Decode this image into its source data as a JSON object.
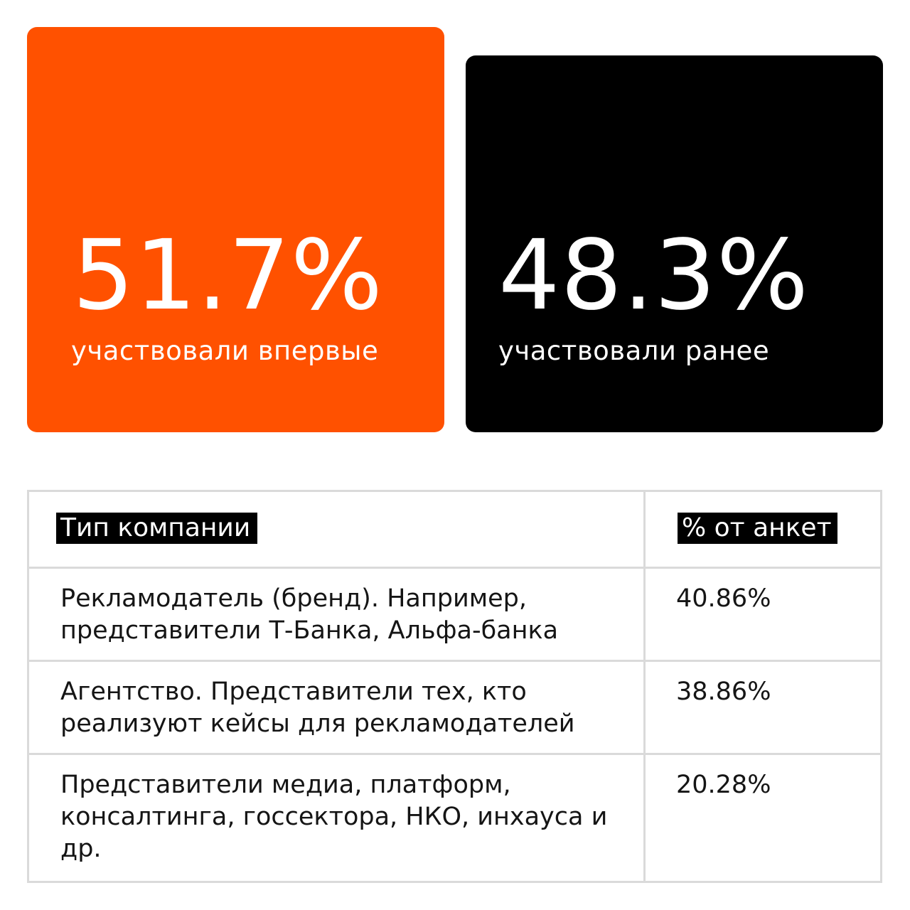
{
  "stats": {
    "first_time": {
      "value": "51.7%",
      "label": "участвовали впервые",
      "color": "#ff5100"
    },
    "previously": {
      "value": "48.3%",
      "label": "участвовали ранее",
      "color": "#000000"
    }
  },
  "table": {
    "headers": {
      "type": "Тип компании",
      "percent": "% от анкет"
    },
    "rows": [
      {
        "type": "Рекламодатель (бренд). Например, представители Т-Банка, Альфа-банка",
        "percent": "40.86%"
      },
      {
        "type": "Агентство. Представители тех, кто реализуют кейсы для рекламодателей",
        "percent": "38.86%"
      },
      {
        "type": "Представители медиа, платформ, консалтинга, госсектора, НКО, инхауса и др.",
        "percent": "20.28%"
      }
    ]
  }
}
